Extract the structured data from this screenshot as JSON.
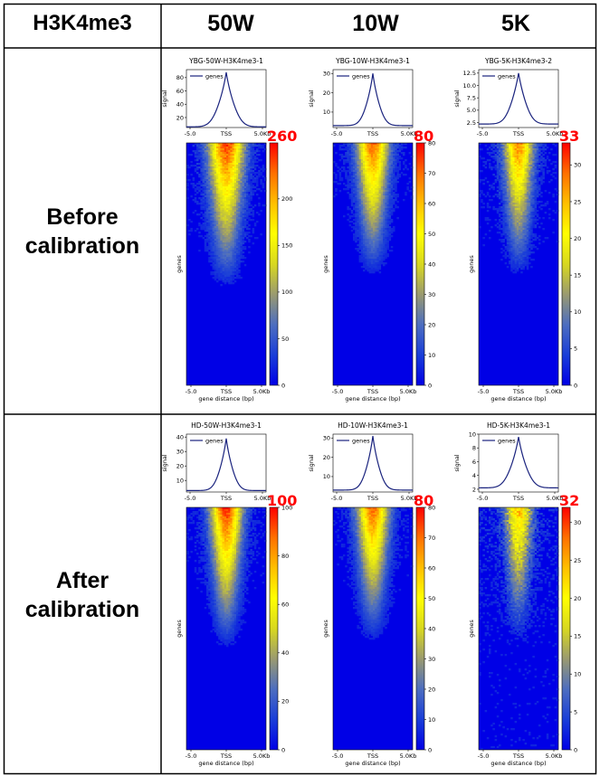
{
  "table": {
    "corner": "H3K4me3",
    "columns": [
      "50W",
      "10W",
      "5K"
    ],
    "rows": [
      {
        "line1": "Before",
        "line2": "calibration"
      },
      {
        "line1": "After",
        "line2": "calibration"
      }
    ]
  },
  "colors": {
    "profile_line": "#1a237e",
    "max_label": "#ff0000",
    "cmap": [
      "#0000e6",
      "#1a3ed8",
      "#4d6ec0",
      "#9a9a70",
      "#d8d820",
      "#ffff00",
      "#ffc000",
      "#ff7000",
      "#ff0000"
    ]
  },
  "chart_data": [
    {
      "type": "heatmap",
      "row": 0,
      "col": 0,
      "title": "YBG-50W-H3K4me3-1",
      "legend": "genes",
      "profile_ylabel": "signal",
      "profile_yticks": [
        "80",
        "60",
        "40",
        "20"
      ],
      "profile_ylim": [
        5,
        92
      ],
      "x_ticks": [
        "-5.0",
        "TSS",
        "5.0Kb"
      ],
      "heatmap_ylabel": "genes",
      "heatmap_xlabel": "gene distance (bp)",
      "colorbar_max": "260",
      "colorbar_ticks": [
        "200",
        "150",
        "100",
        "50",
        "0"
      ],
      "colorbar_range": [
        0,
        260
      ],
      "profile_peak": 88,
      "profile_base": 6,
      "profile_width": 0.22,
      "profile_shoulder": 0.12,
      "heat_intensity": 0.9,
      "heat_spread": 0.16,
      "heat_fade": 0.6,
      "noise": 0.25
    },
    {
      "type": "heatmap",
      "row": 0,
      "col": 1,
      "title": "YBG-10W-H3K4me3-1",
      "legend": "genes",
      "profile_ylabel": "signal",
      "profile_yticks": [
        "30",
        "20",
        "10"
      ],
      "profile_ylim": [
        2,
        32
      ],
      "x_ticks": [
        "-5.0",
        "TSS",
        "5.0Kb"
      ],
      "heatmap_ylabel": "genes",
      "heatmap_xlabel": "gene distance (bp)",
      "colorbar_max": "80",
      "colorbar_ticks": [
        "80",
        "70",
        "60",
        "50",
        "40",
        "30",
        "20",
        "10",
        "0"
      ],
      "colorbar_range": [
        0,
        80
      ],
      "profile_peak": 30,
      "profile_base": 3,
      "profile_width": 0.18,
      "profile_shoulder": 0.1,
      "heat_intensity": 0.85,
      "heat_spread": 0.14,
      "heat_fade": 0.55,
      "noise": 0.22
    },
    {
      "type": "heatmap",
      "row": 0,
      "col": 2,
      "title": "YBG-5K-H3K4me3-2",
      "legend": "genes",
      "profile_ylabel": "signal",
      "profile_yticks": [
        "12.5",
        "10.0",
        "7.5",
        "5.0",
        "2.5"
      ],
      "profile_ylim": [
        1.5,
        13.2
      ],
      "x_ticks": [
        "-5.0",
        "TSS",
        "5.0Kb"
      ],
      "heatmap_ylabel": "genes",
      "heatmap_xlabel": "gene distance (bp)",
      "colorbar_max": "33",
      "colorbar_ticks": [
        "30",
        "25",
        "20",
        "15",
        "10",
        "5",
        "0"
      ],
      "colorbar_range": [
        0,
        33
      ],
      "profile_peak": 12.5,
      "profile_base": 2.2,
      "profile_width": 0.2,
      "profile_shoulder": 0.12,
      "heat_intensity": 0.8,
      "heat_spread": 0.13,
      "heat_fade": 0.55,
      "noise": 0.3
    },
    {
      "type": "heatmap",
      "row": 1,
      "col": 0,
      "title": "HD-50W-H3K4me3-1",
      "legend": "genes",
      "profile_ylabel": "signal",
      "profile_yticks": [
        "40",
        "30",
        "20",
        "10"
      ],
      "profile_ylim": [
        2,
        42
      ],
      "x_ticks": [
        "-5.0",
        "TSS",
        "5.0Kb"
      ],
      "heatmap_ylabel": "genes",
      "heatmap_xlabel": "gene distance (bp)",
      "colorbar_max": "100",
      "colorbar_ticks": [
        "100",
        "80",
        "60",
        "40",
        "20",
        "0"
      ],
      "colorbar_range": [
        0,
        100
      ],
      "profile_peak": 39,
      "profile_base": 3,
      "profile_width": 0.18,
      "profile_shoulder": 0.1,
      "heat_intensity": 0.92,
      "heat_spread": 0.14,
      "heat_fade": 0.58,
      "noise": 0.22
    },
    {
      "type": "heatmap",
      "row": 1,
      "col": 1,
      "title": "HD-10W-H3K4me3-1",
      "legend": "genes",
      "profile_ylabel": "signal",
      "profile_yticks": [
        "30",
        "20",
        "10"
      ],
      "profile_ylim": [
        2,
        32
      ],
      "x_ticks": [
        "-5.0",
        "TSS",
        "5.0Kb"
      ],
      "heatmap_ylabel": "genes",
      "heatmap_xlabel": "gene distance (bp)",
      "colorbar_max": "80",
      "colorbar_ticks": [
        "80",
        "70",
        "60",
        "50",
        "40",
        "30",
        "20",
        "10",
        "0"
      ],
      "colorbar_range": [
        0,
        80
      ],
      "profile_peak": 31,
      "profile_base": 3,
      "profile_width": 0.18,
      "profile_shoulder": 0.1,
      "heat_intensity": 0.85,
      "heat_spread": 0.14,
      "heat_fade": 0.55,
      "noise": 0.22
    },
    {
      "type": "heatmap",
      "row": 1,
      "col": 2,
      "title": "HD-5K-H3K4me3-1",
      "legend": "genes",
      "profile_ylabel": "signal",
      "profile_yticks": [
        "10",
        "8",
        "6",
        "4",
        "2"
      ],
      "profile_ylim": [
        1.6,
        10
      ],
      "x_ticks": [
        "-5.0",
        "TSS",
        "5.0Kb"
      ],
      "heatmap_ylabel": "genes",
      "heatmap_xlabel": "gene distance (bp)",
      "colorbar_max": "32",
      "colorbar_ticks": [
        "30",
        "25",
        "20",
        "15",
        "10",
        "5",
        "0"
      ],
      "colorbar_range": [
        0,
        32
      ],
      "profile_peak": 9.6,
      "profile_base": 2.2,
      "profile_width": 0.22,
      "profile_shoulder": 0.12,
      "heat_intensity": 0.7,
      "heat_spread": 0.12,
      "heat_fade": 0.55,
      "noise": 0.5
    }
  ]
}
